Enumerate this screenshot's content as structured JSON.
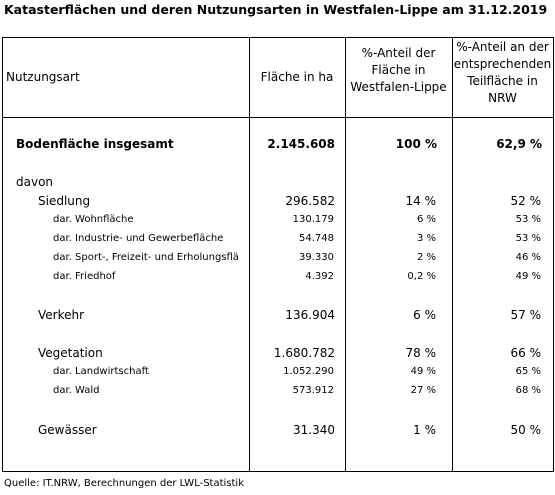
{
  "title": "Katasterflächen und deren Nutzungsarten in Westfalen-Lippe am 31.12.2019",
  "headers": {
    "col1": "Nutzungsart",
    "col2": "Fläche in ha",
    "col3": [
      "%-Anteil der",
      "Fläche in",
      "Westfalen-Lippe"
    ],
    "col4": [
      "%-Anteil an der",
      "entsprechenden",
      "Teilfläche in",
      "NRW"
    ]
  },
  "total": {
    "label": "Bodenfläche insgesamt",
    "area": "2.145.608",
    "share_wl": "100 %",
    "share_nrw": "62,9 %"
  },
  "davon": "davon",
  "siedlung": {
    "label": "Siedlung",
    "area": "296.582",
    "share_wl": "14 %",
    "share_nrw": "52 %",
    "sub": [
      {
        "label": "dar. Wohnfläche",
        "area": "130.179",
        "share_wl": "6 %",
        "share_nrw": "53 %"
      },
      {
        "label": "dar. Industrie- und Gewerbefläche",
        "area": "54.748",
        "share_wl": "3 %",
        "share_nrw": "53 %"
      },
      {
        "label": "dar. Sport-, Freizeit- und Erholungsflä",
        "area": "39.330",
        "share_wl": "2 %",
        "share_nrw": "46 %"
      },
      {
        "label": "dar. Friedhof",
        "area": "4.392",
        "share_wl": "0,2 %",
        "share_nrw": "49 %"
      }
    ]
  },
  "verkehr": {
    "label": "Verkehr",
    "area": "136.904",
    "share_wl": "6 %",
    "share_nrw": "57 %"
  },
  "vegetation": {
    "label": "Vegetation",
    "area": "1.680.782",
    "share_wl": "78 %",
    "share_nrw": "66 %",
    "sub": [
      {
        "label": "dar. Landwirtschaft",
        "area": "1.052.290",
        "share_wl": "49 %",
        "share_nrw": "65 %"
      },
      {
        "label": "dar. Wald",
        "area": "573.912",
        "share_wl": "27 %",
        "share_nrw": "68 %"
      }
    ]
  },
  "gewaesser": {
    "label": "Gewässer",
    "area": "31.340",
    "share_wl": "1 %",
    "share_nrw": "50 %"
  },
  "source": "Quelle: IT.NRW, Berechnungen der LWL-Statistik"
}
